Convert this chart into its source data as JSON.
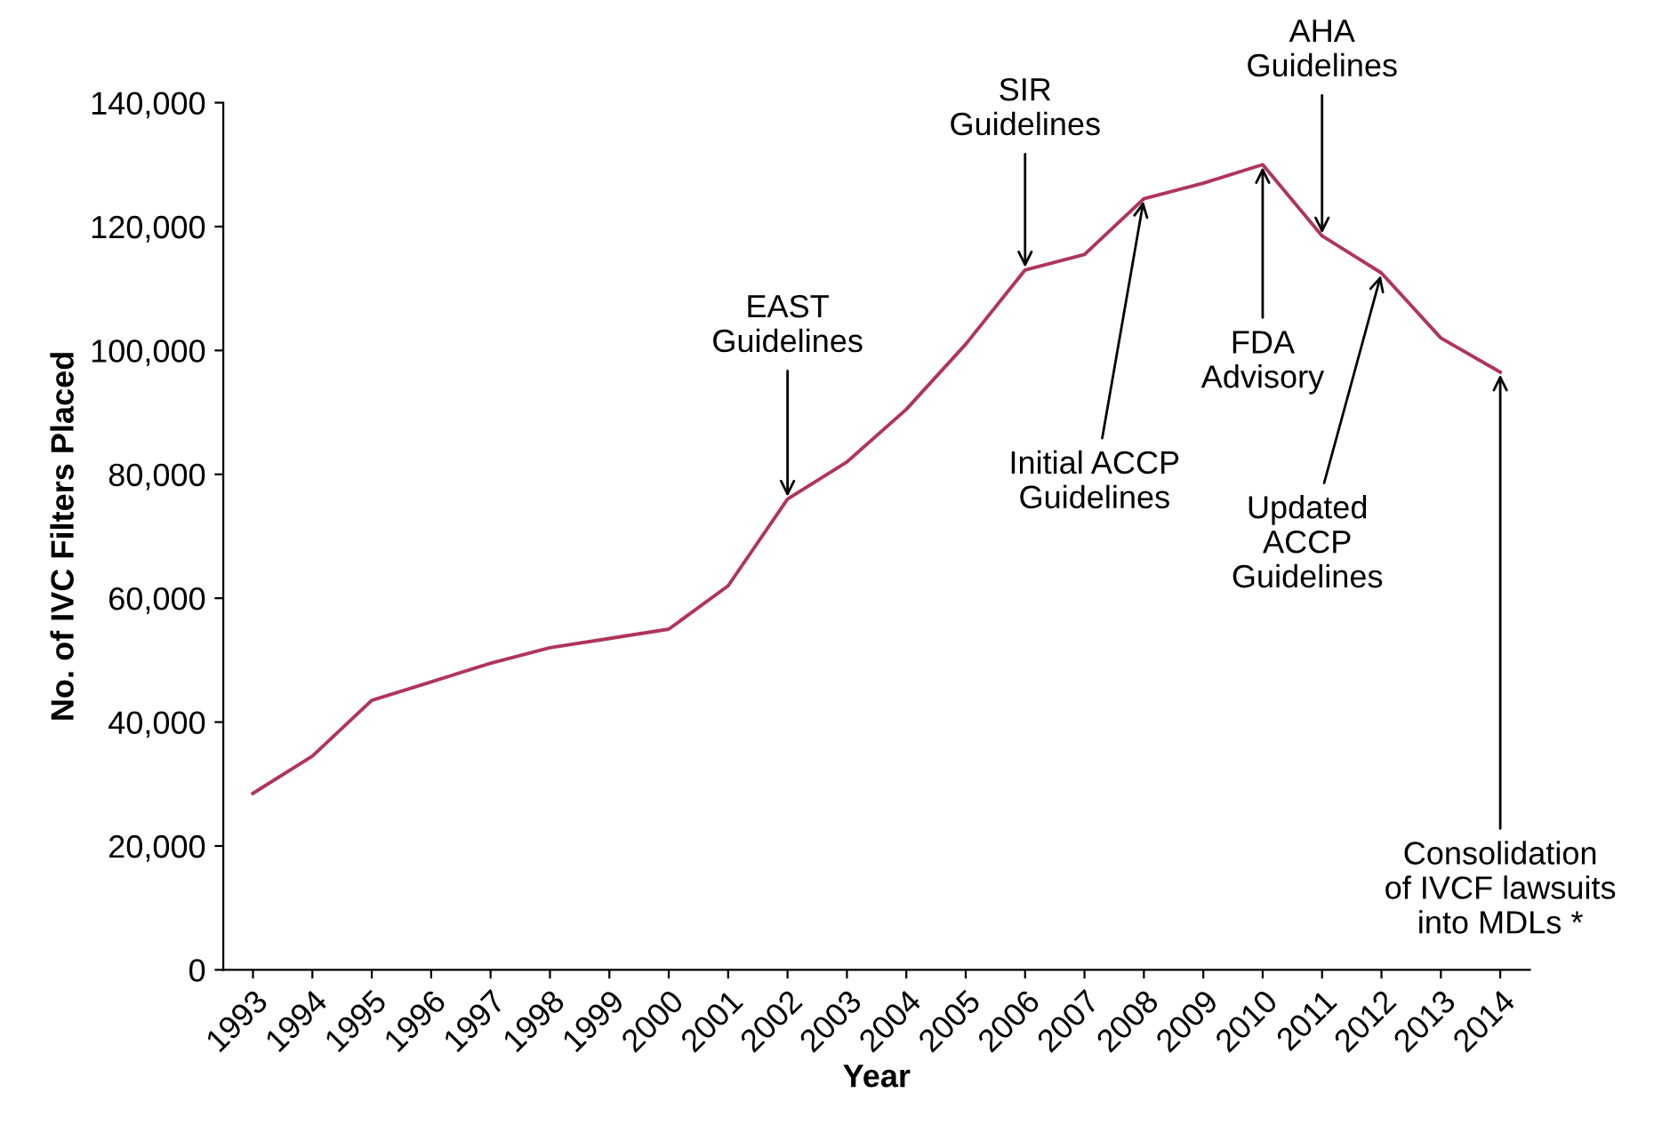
{
  "chart_data": {
    "type": "line",
    "xlabel": "Year",
    "ylabel": "No. of IVC Filters Placed",
    "categories": [
      "1993",
      "1994",
      "1995",
      "1996",
      "1997",
      "1998",
      "1999",
      "2000",
      "2001",
      "2002",
      "2003",
      "2004",
      "2005",
      "2006",
      "2007",
      "2008",
      "2009",
      "2010",
      "2011",
      "2012",
      "2013",
      "2014"
    ],
    "series": [
      {
        "color": "#b0345a",
        "values": [
          28500,
          34500,
          43500,
          46500,
          49500,
          52000,
          53500,
          55000,
          62000,
          76000,
          82000,
          90500,
          101000,
          113000,
          115500,
          124500,
          127000,
          130000,
          118500,
          112500,
          102000,
          96500
        ]
      }
    ],
    "ylim": [
      0,
      140000
    ],
    "yticks": [
      {
        "value": 0,
        "label": "0"
      },
      {
        "value": 20000,
        "label": "20,000"
      },
      {
        "value": 40000,
        "label": "40,000"
      },
      {
        "value": 60000,
        "label": "60,000"
      },
      {
        "value": 80000,
        "label": "80,000"
      },
      {
        "value": 100000,
        "label": "100,000"
      },
      {
        "value": 120000,
        "label": "120,000"
      },
      {
        "value": 140000,
        "label": "140,000"
      }
    ],
    "grid": false,
    "legend": false,
    "marker": "none",
    "line_style": "solid",
    "annotations": [
      {
        "text": "EAST\nGuidelines",
        "x": "2002",
        "y": 76000
      },
      {
        "text": "SIR\nGuidelines",
        "x": "2006",
        "y": 113000
      },
      {
        "text": "Initial ACCP\nGuidelines",
        "x": "2008",
        "y": 124500
      },
      {
        "text": "FDA\nAdvisory",
        "x": "2010",
        "y": 130000
      },
      {
        "text": "AHA\nGuidelines",
        "x": "2011",
        "y": 118500
      },
      {
        "text": "Updated\nACCP\nGuidelines",
        "x": "2012",
        "y": 112500
      },
      {
        "text": "Consolidation\nof IVCF lawsuits\ninto MDLs *",
        "x": "2014",
        "y": 96500
      }
    ]
  }
}
